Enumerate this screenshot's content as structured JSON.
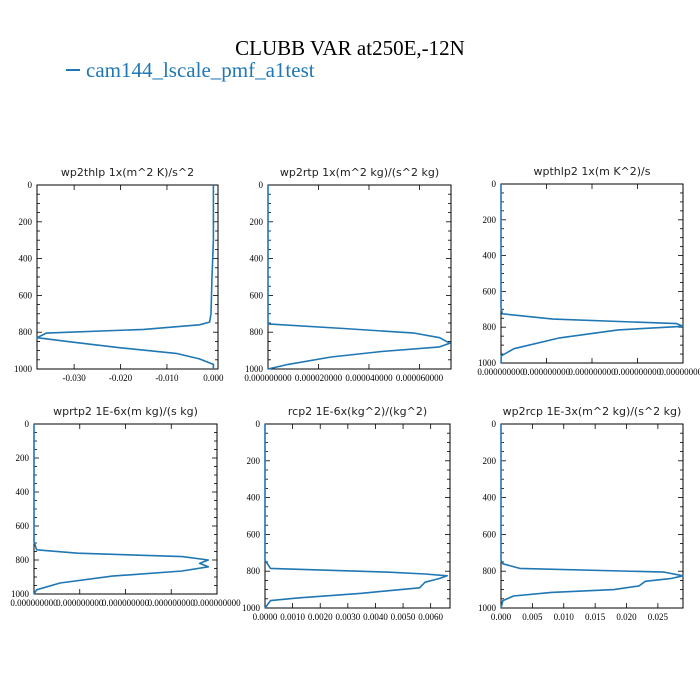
{
  "title": "CLUBB VAR at250E,-12N",
  "legend": {
    "series_name": "cam144_lscale_pmf_a1test",
    "color": "#1f77b4"
  },
  "chart_data": [
    {
      "type": "line",
      "title": "wp2thlp  1x(m^2 K)/s^2",
      "xlim": [
        -0.038,
        0.001
      ],
      "ylim": [
        1000,
        0
      ],
      "x_ticks": [
        "-0.030",
        "-0.020",
        "-0.010",
        "0.000"
      ],
      "x_tick_values": [
        -0.03,
        -0.02,
        -0.01,
        0.0
      ],
      "y_ticks": [
        "0",
        "200",
        "400",
        "600",
        "800",
        "1000"
      ],
      "series": [
        {
          "color": "#1f77b4",
          "points": [
            [
              0.0,
              0
            ],
            [
              0.0,
              100
            ],
            [
              0.0,
              300
            ],
            [
              -0.0003,
              500
            ],
            [
              -0.0005,
              700
            ],
            [
              -0.0008,
              745
            ],
            [
              -0.003,
              760
            ],
            [
              -0.015,
              785
            ],
            [
              -0.036,
              805
            ],
            [
              -0.038,
              830
            ],
            [
              -0.03,
              855
            ],
            [
              -0.02,
              885
            ],
            [
              -0.008,
              915
            ],
            [
              -0.003,
              945
            ],
            [
              0.0,
              975
            ],
            [
              0.0,
              1000
            ]
          ]
        }
      ]
    },
    {
      "type": "line",
      "title": "wp2rtp  1x(m^2 kg)/(s^2 kg)",
      "xlim": [
        0.0,
        7.25e-05
      ],
      "ylim": [
        1000,
        0
      ],
      "x_ticks": [
        "0.000000000",
        "0.000020000",
        "0.000040000",
        "0.000060000"
      ],
      "x_tick_values": [
        0.0,
        2e-05,
        4e-05,
        6e-05
      ],
      "y_ticks": [
        "0",
        "200",
        "400",
        "600",
        "800",
        "1000"
      ],
      "series": [
        {
          "color": "#1f77b4",
          "points": [
            [
              0.0,
              0
            ],
            [
              0.0,
              740
            ],
            [
              0.0,
              755
            ],
            [
              3e-05,
              780
            ],
            [
              5.8e-05,
              805
            ],
            [
              6.8e-05,
              830
            ],
            [
              7.2e-05,
              860
            ],
            [
              6.8e-05,
              880
            ],
            [
              4.5e-05,
              905
            ],
            [
              2.5e-05,
              935
            ],
            [
              8e-06,
              975
            ],
            [
              0.0,
              1000
            ]
          ]
        }
      ]
    },
    {
      "type": "line",
      "title": "wpthlp2  1x(m K^2)/s",
      "xlim": [
        0.0,
        2.8e-07
      ],
      "ylim": [
        1000,
        0
      ],
      "x_ticks": [
        "0.000000000",
        "0.000000000",
        "0.000000000",
        "0.000000000",
        "0.000000000"
      ],
      "x_tick_values": [
        0.0,
        7e-08,
        1.4e-07,
        2.1e-07,
        2.8e-07
      ],
      "y_ticks": [
        "0",
        "200",
        "400",
        "600",
        "800",
        "1000"
      ],
      "series": [
        {
          "color": "#1f77b4",
          "points": [
            [
              0.0,
              0
            ],
            [
              0.0,
              690
            ],
            [
              2e-09,
              725
            ],
            [
              8e-08,
              755
            ],
            [
              2.7e-07,
              780
            ],
            [
              2.8e-07,
              795
            ],
            [
              1.8e-07,
              815
            ],
            [
              9e-08,
              860
            ],
            [
              2e-08,
              920
            ],
            [
              5e-10,
              960
            ],
            [
              0.0,
              1000
            ]
          ]
        }
      ]
    },
    {
      "type": "line",
      "title": "wprtp2  1E-6x(m kg)/(s kg)",
      "xlim": [
        0.0,
        2.1e-09
      ],
      "ylim": [
        1000,
        0
      ],
      "x_ticks": [
        "0.000000000",
        "0.000000000",
        "0.000000000",
        "0.000000000",
        "0.000000000"
      ],
      "x_tick_values": [
        0.0,
        5.25e-10,
        1.05e-09,
        1.575e-09,
        2.1e-09
      ],
      "y_ticks": [
        "0",
        "200",
        "400",
        "600",
        "800",
        "1000"
      ],
      "series": [
        {
          "color": "#1f77b4",
          "points": [
            [
              0.0,
              0
            ],
            [
              0.0,
              690
            ],
            [
              3e-11,
              740
            ],
            [
              5e-10,
              760
            ],
            [
              1.7e-09,
              780
            ],
            [
              2e-09,
              800
            ],
            [
              1.9e-09,
              820
            ],
            [
              2e-09,
              840
            ],
            [
              1.7e-09,
              865
            ],
            [
              9e-10,
              895
            ],
            [
              3e-10,
              935
            ],
            [
              3e-11,
              975
            ],
            [
              0.0,
              1000
            ]
          ]
        }
      ]
    },
    {
      "type": "line",
      "title": "rcp2  1E-6x(kg^2)/(kg^2)",
      "xlim": [
        0.0,
        0.0067
      ],
      "ylim": [
        1000,
        0
      ],
      "x_ticks": [
        "0.0000",
        "0.0010",
        "0.0020",
        "0.0030",
        "0.0040",
        "0.0050",
        "0.0060"
      ],
      "x_tick_values": [
        0.0,
        0.001,
        0.002,
        0.003,
        0.004,
        0.005,
        0.006
      ],
      "y_ticks": [
        "0",
        "200",
        "400",
        "600",
        "800",
        "1000"
      ],
      "series": [
        {
          "color": "#1f77b4",
          "points": [
            [
              0.0,
              0
            ],
            [
              0.0,
              740
            ],
            [
              0.0002,
              785
            ],
            [
              0.0044,
              805
            ],
            [
              0.0058,
              815
            ],
            [
              0.0066,
              825
            ],
            [
              0.0063,
              840
            ],
            [
              0.0058,
              860
            ],
            [
              0.0056,
              890
            ],
            [
              0.0035,
              920
            ],
            [
              0.0012,
              945
            ],
            [
              0.0002,
              960
            ],
            [
              0.0,
              1000
            ]
          ]
        }
      ]
    },
    {
      "type": "line",
      "title": "wp2rcp  1E-3x(m^2 kg)/(s^2 kg)",
      "xlim": [
        0.0,
        0.029
      ],
      "ylim": [
        1000,
        0
      ],
      "x_ticks": [
        "0.000",
        "0.005",
        "0.010",
        "0.015",
        "0.020",
        "0.025"
      ],
      "x_tick_values": [
        0.0,
        0.005,
        0.01,
        0.015,
        0.02,
        0.025
      ],
      "y_ticks": [
        "0",
        "200",
        "400",
        "600",
        "800",
        "1000"
      ],
      "series": [
        {
          "color": "#1f77b4",
          "points": [
            [
              0.0,
              0
            ],
            [
              0.0,
              740
            ],
            [
              0.0003,
              760
            ],
            [
              0.003,
              785
            ],
            [
              0.026,
              805
            ],
            [
              0.029,
              825
            ],
            [
              0.027,
              840
            ],
            [
              0.023,
              855
            ],
            [
              0.022,
              880
            ],
            [
              0.018,
              900
            ],
            [
              0.008,
              915
            ],
            [
              0.002,
              935
            ],
            [
              0.0003,
              960
            ],
            [
              0.0,
              1000
            ]
          ]
        }
      ]
    }
  ]
}
